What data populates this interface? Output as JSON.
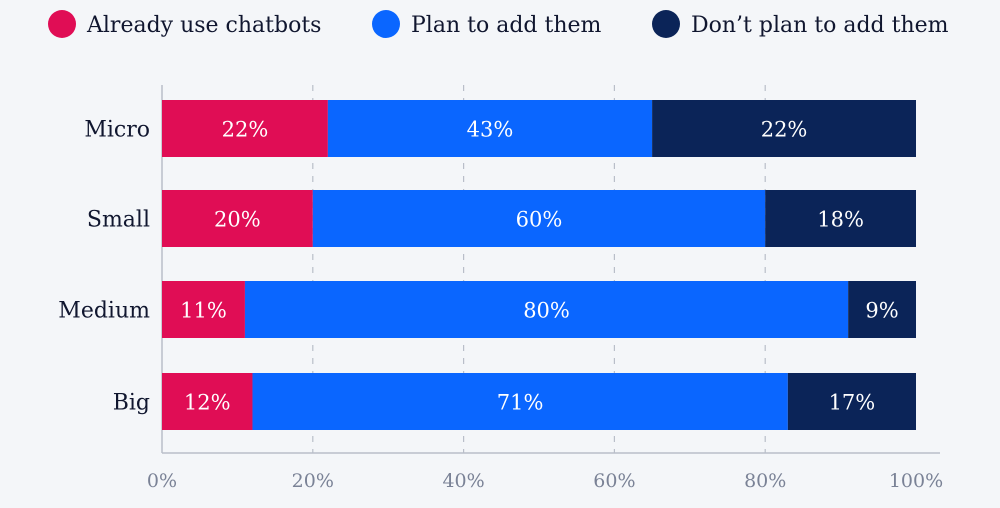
{
  "chart_data": {
    "type": "bar",
    "orientation": "horizontal",
    "stacked": true,
    "categories": [
      "Micro",
      "Small",
      "Medium",
      "Big"
    ],
    "series": [
      {
        "name": "Already use chatbots",
        "color": "#e00d55",
        "values": [
          22,
          20,
          11,
          12
        ]
      },
      {
        "name": "Plan to add them",
        "color": "#0a66ff",
        "values": [
          43,
          60,
          80,
          71
        ]
      },
      {
        "name": "Don’t plan to add them",
        "color": "#0b2458",
        "values": [
          22,
          18,
          9,
          17
        ]
      }
    ],
    "value_labels": [
      [
        "22%",
        "43%",
        "22%"
      ],
      [
        "20%",
        "60%",
        "18%"
      ],
      [
        "11%",
        "80%",
        "9%"
      ],
      [
        "12%",
        "71%",
        "17%"
      ]
    ],
    "xlim": [
      0,
      100
    ],
    "xticks": [
      "0%",
      "20%",
      "40%",
      "60%",
      "80%",
      "100%"
    ],
    "grid": "vertical dashed",
    "legend_placement": "top"
  }
}
